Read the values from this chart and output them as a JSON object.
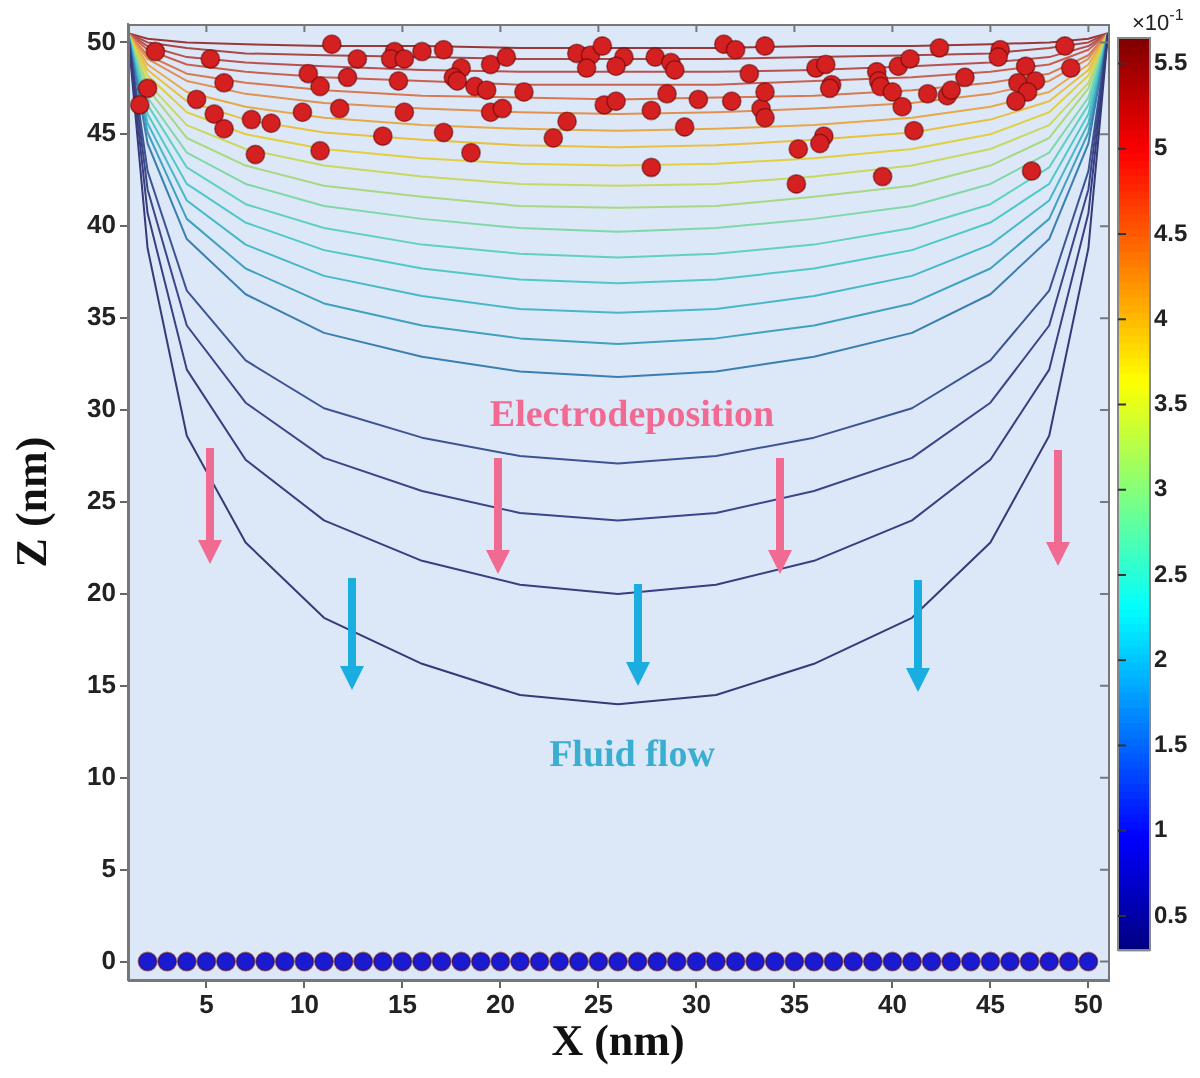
{
  "chart_data": {
    "type": "line",
    "xlabel": "X (nm)",
    "ylabel": "Z (nm)",
    "clabel": "×10$^{-1}$",
    "clim": [
      0.3,
      5.65
    ],
    "cticks": [
      0.5,
      1,
      1.5,
      2,
      2.5,
      3,
      3.5,
      4,
      4.5,
      5,
      5.5
    ],
    "xlim": [
      1,
      51
    ],
    "xticks": [
      5,
      10,
      15,
      20,
      25,
      30,
      35,
      40,
      45,
      50
    ],
    "ylim": [
      -1,
      51
    ],
    "yticks": [
      0,
      5,
      10,
      15,
      20,
      25,
      30,
      35,
      40,
      45,
      50
    ],
    "grid": false,
    "legend": false,
    "marker": "none",
    "line_style": "solid",
    "annotations": [
      "Electrodeposition",
      "Fluid flow"
    ],
    "x": [
      1,
      2,
      4,
      7,
      11,
      16,
      21,
      26,
      31,
      36,
      41,
      45,
      48,
      50,
      51
    ],
    "series": [
      {
        "color": "#353a78",
        "values": [
          50.5,
          38.8,
          28.6,
          22.8,
          18.7,
          16.2,
          14.5,
          14.0,
          14.5,
          16.2,
          18.7,
          22.8,
          28.6,
          38.8,
          50.5
        ]
      },
      {
        "color": "#383e80",
        "values": [
          50.5,
          40.7,
          32.2,
          27.3,
          24.0,
          21.8,
          20.5,
          20.0,
          20.5,
          21.8,
          24.0,
          27.3,
          32.2,
          40.7,
          50.5
        ]
      },
      {
        "color": "#3a4688",
        "values": [
          50.5,
          42.0,
          34.6,
          30.4,
          27.4,
          25.6,
          24.4,
          24.0,
          24.4,
          25.6,
          27.4,
          30.4,
          34.6,
          42.0,
          50.5
        ]
      },
      {
        "color": "#3d5494",
        "values": [
          50.5,
          43.0,
          36.5,
          32.7,
          30.1,
          28.5,
          27.5,
          27.1,
          27.5,
          28.5,
          30.1,
          32.7,
          36.5,
          43.0,
          50.5
        ]
      },
      {
        "color": "#3b7fb0",
        "values": [
          50.5,
          44.5,
          39.3,
          36.3,
          34.2,
          32.9,
          32.1,
          31.8,
          32.1,
          32.9,
          34.2,
          36.3,
          39.3,
          44.5,
          50.5
        ]
      },
      {
        "color": "#40a0c0",
        "values": [
          50.5,
          45.1,
          40.4,
          37.7,
          35.8,
          34.6,
          33.9,
          33.6,
          33.9,
          34.6,
          35.8,
          37.7,
          40.4,
          45.1,
          50.5
        ]
      },
      {
        "color": "#48b8c8",
        "values": [
          50.5,
          45.6,
          41.4,
          39.0,
          37.3,
          36.2,
          35.5,
          35.3,
          35.5,
          36.2,
          37.3,
          39.0,
          41.4,
          45.6,
          50.5
        ]
      },
      {
        "color": "#50c8c8",
        "values": [
          50.5,
          46.1,
          42.3,
          40.2,
          38.7,
          37.7,
          37.1,
          36.9,
          37.1,
          37.7,
          38.7,
          40.2,
          42.3,
          46.1,
          50.5
        ]
      },
      {
        "color": "#60d0c0",
        "values": [
          50.5,
          46.6,
          43.2,
          41.2,
          39.9,
          39.0,
          38.5,
          38.3,
          38.5,
          39.0,
          39.9,
          41.2,
          43.2,
          46.6,
          50.5
        ]
      },
      {
        "color": "#80d8a8",
        "values": [
          50.5,
          47.0,
          44.0,
          42.3,
          41.1,
          40.4,
          39.9,
          39.7,
          39.9,
          40.4,
          41.1,
          42.3,
          44.0,
          47.0,
          50.5
        ]
      },
      {
        "color": "#a8d880",
        "values": [
          50.5,
          47.5,
          44.8,
          43.3,
          42.2,
          41.6,
          41.1,
          41.0,
          41.1,
          41.6,
          42.2,
          43.3,
          44.8,
          47.5,
          50.5
        ]
      },
      {
        "color": "#c8d860",
        "values": [
          50.5,
          47.8,
          45.5,
          44.2,
          43.3,
          42.7,
          42.3,
          42.2,
          42.3,
          42.7,
          43.3,
          44.2,
          45.5,
          47.8,
          50.5
        ]
      },
      {
        "color": "#e0d040",
        "values": [
          50.5,
          48.2,
          46.2,
          45.0,
          44.2,
          43.7,
          43.4,
          43.3,
          43.4,
          43.7,
          44.2,
          45.0,
          46.2,
          48.2,
          50.5
        ]
      },
      {
        "color": "#e8c040",
        "values": [
          50.5,
          48.5,
          46.8,
          45.8,
          45.1,
          44.7,
          44.4,
          44.3,
          44.4,
          44.7,
          45.1,
          45.8,
          46.8,
          48.5,
          50.5
        ]
      },
      {
        "color": "#e8a848",
        "values": [
          50.5,
          48.8,
          47.3,
          46.5,
          45.9,
          45.5,
          45.3,
          45.2,
          45.3,
          45.5,
          45.9,
          46.5,
          47.3,
          48.8,
          50.5
        ]
      },
      {
        "color": "#e09050",
        "values": [
          50.5,
          49.1,
          47.9,
          47.2,
          46.7,
          46.4,
          46.2,
          46.1,
          46.2,
          46.4,
          46.7,
          47.2,
          47.9,
          49.1,
          50.5
        ]
      },
      {
        "color": "#d87850",
        "values": [
          50.5,
          49.3,
          48.3,
          47.8,
          47.4,
          47.1,
          47.0,
          46.9,
          47.0,
          47.1,
          47.4,
          47.8,
          48.3,
          49.3,
          50.5
        ]
      },
      {
        "color": "#c86050",
        "values": [
          50.5,
          49.6,
          48.8,
          48.4,
          48.1,
          47.9,
          47.7,
          47.7,
          47.7,
          47.9,
          48.1,
          48.4,
          48.8,
          49.6,
          50.5
        ]
      },
      {
        "color": "#b85050",
        "values": [
          50.5,
          49.8,
          49.2,
          48.9,
          48.7,
          48.5,
          48.4,
          48.4,
          48.4,
          48.5,
          48.7,
          48.9,
          49.2,
          49.8,
          50.5
        ]
      },
      {
        "color": "#a84848",
        "values": [
          50.5,
          50.0,
          49.7,
          49.4,
          49.3,
          49.2,
          49.1,
          49.1,
          49.1,
          49.2,
          49.3,
          49.4,
          49.7,
          50.0,
          50.5
        ]
      },
      {
        "color": "#983838",
        "values": [
          50.5,
          50.2,
          50.0,
          49.9,
          49.8,
          49.8,
          49.7,
          49.7,
          49.7,
          49.8,
          49.8,
          49.9,
          50.0,
          50.2,
          50.5
        ]
      },
      {
        "type": "scatter",
        "marker": "circle",
        "color": "#d42020",
        "x": [
          2.4,
          2.0,
          1.6,
          5.2,
          5.9,
          4.5,
          5.4,
          5.9,
          7.3,
          8.3,
          7.5,
          11.4,
          12.7,
          10.2,
          10.8,
          12.2,
          9.9,
          11.8,
          10.8,
          14.0,
          14.6,
          14.4,
          15.1,
          16.0,
          17.1,
          14.8,
          18.0,
          17.6,
          17.8,
          18.7,
          19.3,
          19.5,
          20.3,
          21.2,
          15.1,
          17.1,
          18.5,
          19.5,
          20.1,
          22.7,
          23.4,
          23.9,
          24.6,
          24.4,
          25.2,
          25.3,
          26.3,
          25.9,
          31.4,
          32.0,
          33.5,
          27.9,
          28.7,
          28.9,
          32.7,
          25.9,
          27.7,
          28.5,
          30.1,
          31.8,
          33.3,
          33.5,
          33.5,
          29.4,
          36.1,
          36.6,
          36.9,
          36.8,
          39.2,
          39.3,
          39.4,
          40.3,
          40.9,
          42.4,
          40.0,
          40.5,
          41.8,
          42.8,
          43.0,
          43.7,
          41.1,
          36.5,
          36.3,
          35.2,
          27.7,
          35.1,
          39.5,
          45.5,
          45.4,
          46.8,
          46.4,
          47.3,
          46.9,
          46.3,
          48.8,
          49.1,
          47.1
        ],
        "values": [
          49.5,
          47.5,
          46.6,
          49.1,
          47.8,
          46.9,
          46.1,
          45.3,
          45.8,
          45.6,
          43.9,
          49.9,
          49.1,
          48.3,
          47.6,
          48.1,
          46.2,
          46.4,
          44.1,
          44.9,
          49.5,
          49.1,
          49.1,
          49.5,
          49.6,
          47.9,
          48.6,
          48.1,
          47.9,
          47.6,
          47.4,
          48.8,
          49.2,
          47.3,
          46.2,
          45.1,
          44.0,
          46.2,
          46.4,
          44.8,
          45.7,
          49.4,
          49.3,
          48.6,
          49.8,
          46.6,
          49.2,
          48.7,
          49.9,
          49.6,
          49.8,
          49.2,
          48.9,
          48.5,
          48.3,
          46.8,
          46.3,
          47.2,
          46.9,
          46.8,
          46.4,
          45.9,
          47.3,
          45.4,
          48.6,
          48.8,
          47.7,
          47.5,
          48.4,
          47.9,
          47.6,
          48.7,
          49.1,
          49.7,
          47.3,
          46.5,
          47.2,
          47.1,
          47.4,
          48.1,
          45.2,
          44.9,
          44.5,
          44.2,
          43.2,
          42.3,
          42.7,
          49.6,
          49.2,
          48.7,
          47.8,
          47.9,
          47.3,
          46.8,
          49.8,
          48.6,
          43.0
        ]
      },
      {
        "type": "scatter",
        "marker": "circle",
        "color": "#1a1ad0",
        "x": [
          2,
          3,
          4,
          5,
          6,
          7,
          8,
          9,
          10,
          11,
          12,
          13,
          14,
          15,
          16,
          17,
          18,
          19,
          20,
          21,
          22,
          23,
          24,
          25,
          26,
          27,
          28,
          29,
          30,
          31,
          32,
          33,
          34,
          35,
          36,
          37,
          38,
          39,
          40,
          41,
          42,
          43,
          44,
          45,
          46,
          47,
          48,
          49,
          50
        ],
        "values": [
          0,
          0,
          0,
          0,
          0,
          0,
          0,
          0,
          0,
          0,
          0,
          0,
          0,
          0,
          0,
          0,
          0,
          0,
          0,
          0,
          0,
          0,
          0,
          0,
          0,
          0,
          0,
          0,
          0,
          0,
          0,
          0,
          0,
          0,
          0,
          0,
          0,
          0,
          0,
          0,
          0,
          0,
          0,
          0,
          0,
          0,
          0,
          0,
          0
        ]
      }
    ]
  }
}
